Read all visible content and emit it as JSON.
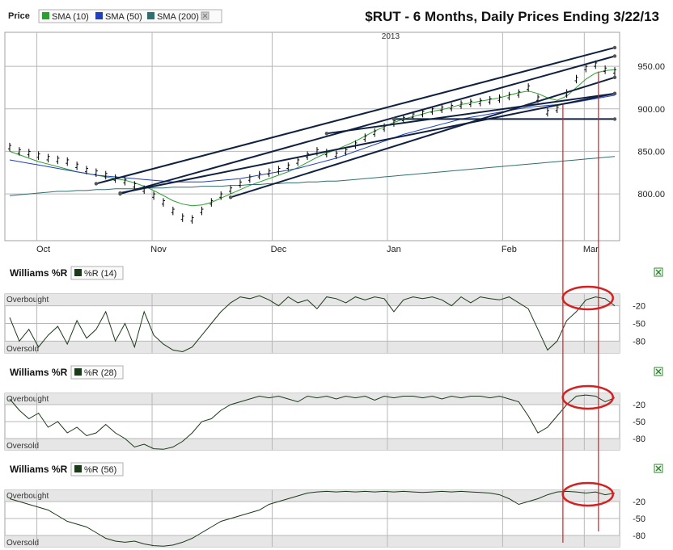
{
  "header": {
    "price_label": "Price",
    "title": "$RUT - 6 Months, Daily Prices Ending 3/22/13",
    "legend": [
      {
        "label": "SMA (10)",
        "color": "#2ca02c"
      },
      {
        "label": "SMA (50)",
        "color": "#1f3fbf"
      },
      {
        "label": "SMA (200)",
        "color": "#2f6f6f"
      }
    ],
    "close_icon": "close-icon"
  },
  "colors": {
    "frame": "#a0a0a0",
    "grid": "#b8b8b8",
    "band_fill": "#e6e6e6",
    "price_bars": "#000000",
    "trendlines": "#102040",
    "highlight": "#d62020",
    "wr_line": "#1a3a1a",
    "expand_icon": "#2a8a2a"
  },
  "chart_data": [
    {
      "type": "line",
      "title": "$RUT - 6 Months, Daily Prices Ending 3/22/13",
      "year_marker": "2013",
      "x_ticks": [
        "Oct",
        "Nov",
        "Dec",
        "Jan",
        "Feb",
        "Mar"
      ],
      "y_ticks": [
        "950.00",
        "900.00",
        "850.00",
        "800.00"
      ],
      "ylim": [
        745,
        990
      ],
      "series": [
        {
          "name": "SMA (10)",
          "values": [
            850,
            846,
            842,
            838,
            835,
            832,
            829,
            826,
            824,
            822,
            820,
            818,
            816,
            813,
            809,
            804,
            798,
            792,
            788,
            786,
            787,
            790,
            795,
            800,
            805,
            810,
            814,
            818,
            822,
            826,
            831,
            837,
            843,
            848,
            852,
            857,
            862,
            868,
            874,
            879,
            884,
            888,
            891,
            894,
            897,
            899,
            902,
            905,
            907,
            909,
            911,
            913,
            916,
            919,
            921,
            918,
            913,
            910,
            915,
            925,
            935,
            942,
            945,
            946
          ]
        },
        {
          "name": "SMA (50)",
          "values": [
            840,
            838,
            836,
            834,
            832,
            830,
            828,
            826,
            824,
            822,
            821,
            820,
            819,
            818,
            817,
            816,
            815,
            814,
            814,
            814,
            814,
            815,
            816,
            817,
            818,
            820,
            822,
            824,
            826,
            828,
            830,
            833,
            836,
            839,
            842,
            846,
            850,
            854,
            858,
            862,
            866,
            870,
            873,
            876,
            879,
            882,
            885,
            888,
            890,
            892,
            894,
            896,
            898,
            900,
            902,
            903,
            904,
            905,
            906,
            908,
            910,
            912,
            914,
            916
          ]
        },
        {
          "name": "SMA (200)",
          "values": [
            798,
            799,
            800,
            801,
            802,
            803,
            803,
            804,
            804,
            805,
            805,
            806,
            806,
            806,
            807,
            807,
            807,
            808,
            808,
            808,
            809,
            809,
            809,
            810,
            810,
            811,
            811,
            812,
            812,
            813,
            813,
            814,
            814,
            815,
            815,
            816,
            817,
            818,
            819,
            820,
            821,
            822,
            823,
            824,
            825,
            826,
            827,
            828,
            829,
            830,
            831,
            832,
            833,
            834,
            835,
            836,
            837,
            838,
            839,
            840,
            841,
            842,
            843,
            844
          ]
        },
        {
          "name": "Price",
          "values": [
            855,
            850,
            848,
            845,
            842,
            840,
            838,
            833,
            828,
            825,
            822,
            818,
            815,
            810,
            805,
            798,
            790,
            780,
            772,
            770,
            780,
            790,
            798,
            805,
            812,
            818,
            822,
            825,
            828,
            832,
            838,
            845,
            850,
            848,
            846,
            850,
            858,
            866,
            872,
            878,
            884,
            888,
            892,
            895,
            898,
            900,
            902,
            905,
            907,
            908,
            910,
            912,
            915,
            918,
            925,
            912,
            896,
            900,
            918,
            935,
            948,
            952,
            946,
            944
          ]
        }
      ]
    },
    {
      "type": "line",
      "title": "Williams %R",
      "legend": "%R (14)",
      "band_labels": [
        "Overbought",
        "Oversold"
      ],
      "y_ticks": [
        "-20",
        "-50",
        "-80"
      ],
      "ylim": [
        -100,
        0
      ],
      "series": [
        {
          "name": "%R (14)",
          "values": [
            -40,
            -80,
            -60,
            -90,
            -70,
            -55,
            -85,
            -45,
            -75,
            -60,
            -30,
            -80,
            -50,
            -90,
            -30,
            -70,
            -85,
            -95,
            -98,
            -90,
            -70,
            -50,
            -30,
            -15,
            -5,
            -8,
            -3,
            -10,
            -20,
            -5,
            -15,
            -10,
            -25,
            -5,
            -8,
            -15,
            -5,
            -10,
            -5,
            -8,
            -30,
            -10,
            -5,
            -8,
            -5,
            -10,
            -20,
            -5,
            -15,
            -5,
            -8,
            -10,
            -5,
            -15,
            -25,
            -60,
            -95,
            -80,
            -45,
            -30,
            -10,
            -5,
            -8,
            -20
          ]
        }
      ]
    },
    {
      "type": "line",
      "title": "Williams %R",
      "legend": "%R (28)",
      "band_labels": [
        "Overbought",
        "Oversold"
      ],
      "y_ticks": [
        "-20",
        "-50",
        "-80"
      ],
      "ylim": [
        -100,
        0
      ],
      "series": [
        {
          "name": "%R (28)",
          "values": [
            -10,
            -30,
            -45,
            -35,
            -60,
            -50,
            -70,
            -60,
            -75,
            -70,
            -55,
            -70,
            -80,
            -95,
            -90,
            -98,
            -99,
            -95,
            -85,
            -70,
            -50,
            -45,
            -30,
            -20,
            -15,
            -10,
            -5,
            -8,
            -5,
            -10,
            -15,
            -5,
            -8,
            -5,
            -10,
            -5,
            -8,
            -5,
            -12,
            -5,
            -8,
            -5,
            -5,
            -8,
            -5,
            -10,
            -5,
            -8,
            -5,
            -5,
            -8,
            -5,
            -10,
            -15,
            -40,
            -70,
            -60,
            -40,
            -20,
            -5,
            -3,
            -5,
            -15,
            -8
          ]
        }
      ]
    },
    {
      "type": "line",
      "title": "Williams %R",
      "legend": "%R (56)",
      "band_labels": [
        "Overbought",
        "Oversold"
      ],
      "y_ticks": [
        "-20",
        "-50",
        "-80"
      ],
      "ylim": [
        -100,
        0
      ],
      "series": [
        {
          "name": "%R (56)",
          "values": [
            -15,
            -20,
            -25,
            -30,
            -35,
            -45,
            -55,
            -60,
            -65,
            -75,
            -85,
            -90,
            -92,
            -90,
            -95,
            -98,
            -99,
            -97,
            -92,
            -85,
            -75,
            -65,
            -55,
            -50,
            -45,
            -40,
            -35,
            -25,
            -20,
            -15,
            -10,
            -5,
            -3,
            -2,
            -3,
            -2,
            -3,
            -2,
            -3,
            -2,
            -3,
            -2,
            -3,
            -4,
            -3,
            -2,
            -3,
            -2,
            -3,
            -4,
            -5,
            -8,
            -15,
            -25,
            -20,
            -15,
            -8,
            -3,
            -2,
            -3,
            -5,
            -3,
            -8,
            -5
          ]
        }
      ]
    }
  ]
}
